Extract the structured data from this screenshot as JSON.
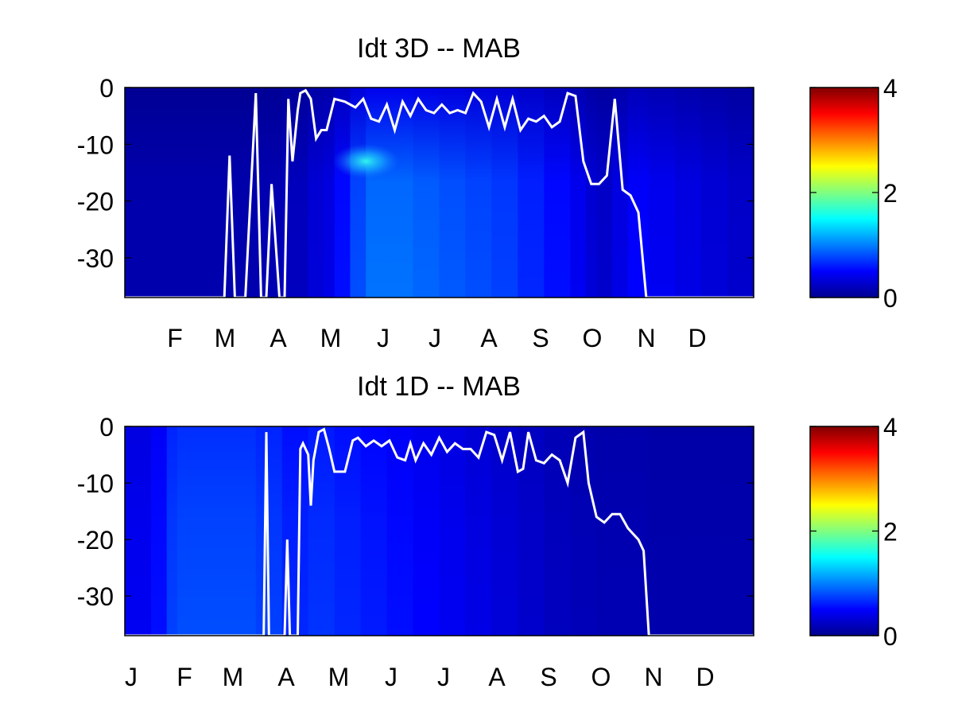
{
  "chart_data": [
    {
      "type": "heatmap",
      "title": "Idt 3D    -- MAB",
      "xlabel": "",
      "ylabel": "",
      "x_ticks": [
        "F",
        "M",
        "A",
        "M",
        "J",
        "J",
        "A",
        "S",
        "O",
        "N",
        "D"
      ],
      "x_range": [
        0,
        12
      ],
      "y_ticks": [
        "0",
        "-10",
        "-20",
        "-30"
      ],
      "y_range": [
        -37,
        0
      ],
      "colorbar": {
        "range": [
          0,
          4
        ],
        "ticks": [
          "0",
          "2",
          "4"
        ],
        "colormap": "jet"
      },
      "grid": false,
      "heat": {
        "x": [
          0,
          0.5,
          1.0,
          1.5,
          2.0,
          2.5,
          3.0,
          3.5,
          3.8,
          4.0,
          4.3,
          4.6,
          5.0,
          5.5,
          6.0,
          6.5,
          7.0,
          7.5,
          8.0,
          8.5,
          8.8,
          9.0,
          9.3,
          9.6,
          10.0,
          10.5,
          11.0,
          11.5,
          12.0
        ],
        "column_intensity": [
          0.18,
          0.18,
          0.18,
          0.18,
          0.18,
          0.2,
          0.25,
          0.35,
          0.4,
          0.55,
          0.8,
          0.95,
          0.95,
          0.9,
          0.85,
          0.8,
          0.75,
          0.65,
          0.55,
          0.45,
          0.35,
          0.3,
          0.4,
          0.5,
          0.45,
          0.4,
          0.35,
          0.3,
          0.3
        ],
        "hotspot": {
          "x": 4.6,
          "y": -13,
          "value": 1.6
        }
      },
      "line": {
        "name": "",
        "color": "#ffffff",
        "x": [
          0,
          1.9,
          2.0,
          2.1,
          2.3,
          2.5,
          2.6,
          2.7,
          2.8,
          2.95,
          3.05,
          3.12,
          3.2,
          3.3,
          3.35,
          3.45,
          3.55,
          3.65,
          3.75,
          3.85,
          4.0,
          4.2,
          4.4,
          4.55,
          4.7,
          4.85,
          5.0,
          5.15,
          5.3,
          5.45,
          5.6,
          5.75,
          5.9,
          6.05,
          6.2,
          6.35,
          6.5,
          6.65,
          6.8,
          6.95,
          7.1,
          7.25,
          7.4,
          7.55,
          7.7,
          7.85,
          8.0,
          8.15,
          8.3,
          8.45,
          8.6,
          8.75,
          8.9,
          9.05,
          9.2,
          9.35,
          9.5,
          9.65,
          9.8,
          9.95,
          10.0,
          12.0
        ],
        "y": [
          -37,
          -37,
          -12,
          -37,
          -37,
          -1,
          -37,
          -37,
          -17,
          -37,
          -37,
          -2,
          -13,
          -4,
          -1,
          -0.5,
          -2,
          -9,
          -7.5,
          -7.5,
          -2,
          -2.5,
          -3.5,
          -2,
          -5.5,
          -6,
          -3,
          -7.5,
          -2.5,
          -5,
          -2,
          -4,
          -4.5,
          -3,
          -4.5,
          -4,
          -4.5,
          -1,
          -2.5,
          -7,
          -2,
          -7,
          -2,
          -7.5,
          -5.5,
          -6,
          -5,
          -7,
          -6,
          -1,
          -1.5,
          -13,
          -17,
          -17,
          -15.5,
          -2,
          -18,
          -19,
          -22,
          -37,
          -37,
          -37
        ]
      }
    },
    {
      "type": "heatmap",
      "title": "Idt 1D    -- MAB",
      "xlabel": "",
      "ylabel": "",
      "x_ticks": [
        "J",
        "F",
        "M",
        "A",
        "M",
        "J",
        "J",
        "A",
        "S",
        "O",
        "N",
        "D"
      ],
      "x_range": [
        0,
        12
      ],
      "y_ticks": [
        "0",
        "-10",
        "-20",
        "-30"
      ],
      "y_range": [
        -37,
        0
      ],
      "colorbar": {
        "range": [
          0,
          4
        ],
        "ticks": [
          "0",
          "2",
          "4"
        ],
        "colormap": "jet"
      },
      "grid": false,
      "heat": {
        "x": [
          0,
          0.5,
          0.8,
          1.0,
          1.5,
          2.0,
          2.5,
          3.0,
          3.5,
          4.0,
          4.5,
          5.0,
          5.5,
          6.0,
          6.5,
          7.0,
          7.5,
          8.0,
          8.5,
          9.0,
          9.5,
          10.0,
          10.5,
          11.0,
          11.5,
          12.0
        ],
        "column_intensity": [
          0.45,
          0.55,
          0.75,
          0.8,
          0.8,
          0.8,
          0.75,
          0.65,
          0.7,
          0.65,
          0.6,
          0.55,
          0.5,
          0.45,
          0.4,
          0.35,
          0.3,
          0.25,
          0.22,
          0.2,
          0.2,
          0.18,
          0.18,
          0.18,
          0.18,
          0.18
        ],
        "hotspot": null
      },
      "line": {
        "name": "",
        "color": "#ffffff",
        "x": [
          0,
          2.65,
          2.7,
          2.75,
          2.8,
          3.05,
          3.1,
          3.15,
          3.3,
          3.35,
          3.4,
          3.5,
          3.55,
          3.6,
          3.7,
          3.8,
          3.9,
          4.0,
          4.2,
          4.35,
          4.45,
          4.6,
          4.75,
          4.9,
          5.05,
          5.2,
          5.35,
          5.45,
          5.55,
          5.7,
          5.85,
          6.0,
          6.15,
          6.3,
          6.45,
          6.6,
          6.75,
          6.9,
          7.05,
          7.2,
          7.35,
          7.5,
          7.6,
          7.7,
          7.85,
          8.0,
          8.15,
          8.3,
          8.45,
          8.6,
          8.75,
          8.85,
          9.0,
          9.15,
          9.3,
          9.45,
          9.6,
          9.7,
          9.8,
          9.9,
          10.0,
          12.0
        ],
        "y": [
          -37,
          -37,
          -1,
          -37,
          -37,
          -37,
          -20,
          -37,
          -37,
          -4,
          -3,
          -5,
          -14,
          -6,
          -1,
          -0.5,
          -4,
          -8,
          -8,
          -2.5,
          -2,
          -3.5,
          -2.5,
          -3.5,
          -2.5,
          -5.5,
          -6,
          -3,
          -6,
          -3,
          -5,
          -2,
          -4.5,
          -3,
          -4,
          -4,
          -5.5,
          -1,
          -1.5,
          -6,
          -1,
          -8,
          -7.5,
          -1,
          -6,
          -6.5,
          -5,
          -6,
          -10,
          -2,
          -1,
          -10,
          -16,
          -17,
          -15.5,
          -15.5,
          -18,
          -19,
          -20,
          -22,
          -37,
          -37
        ]
      }
    }
  ]
}
